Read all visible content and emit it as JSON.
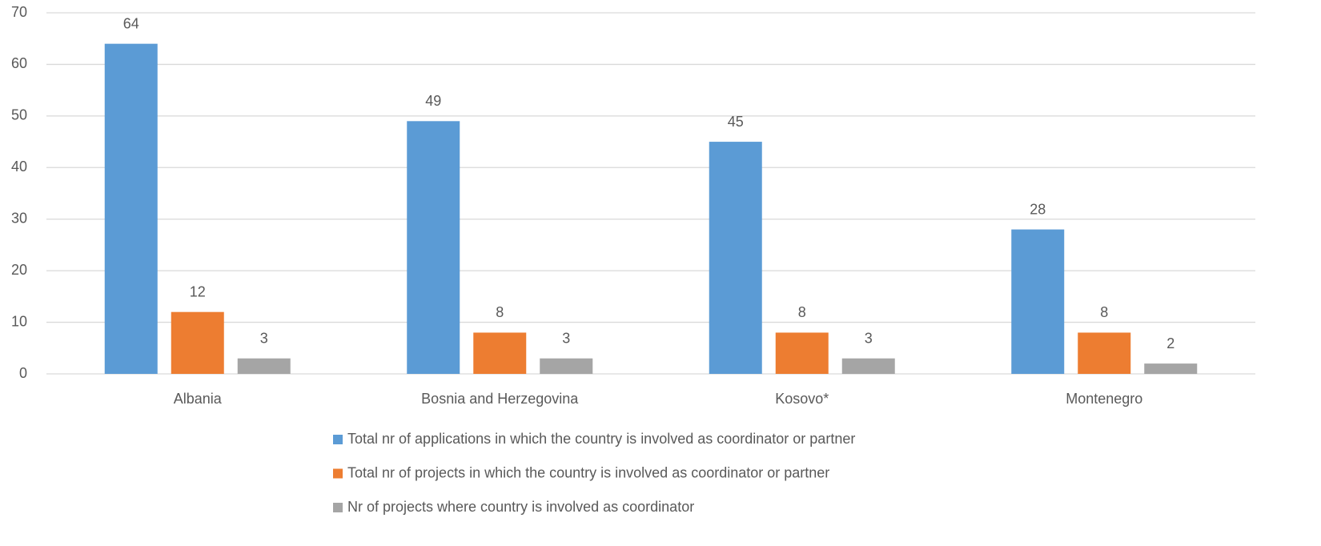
{
  "chart_data": {
    "type": "bar",
    "categories": [
      "Albania",
      "Bosnia and Herzegovina",
      "Kosovo*",
      "Montenegro"
    ],
    "series": [
      {
        "name": "Total nr of applications in which the country is involved as coordinator or partner",
        "color": "#5b9bd5",
        "values": [
          64,
          49,
          45,
          28
        ]
      },
      {
        "name": "Total nr of projects in which the country is involved as coordinator or partner",
        "color": "#ed7d31",
        "values": [
          12,
          8,
          8,
          8
        ]
      },
      {
        "name": "Nr of projects where country is involved as coordinator",
        "color": "#a5a5a5",
        "values": [
          3,
          3,
          3,
          2
        ]
      }
    ],
    "ylim": [
      0,
      70
    ],
    "yticks": [
      0,
      10,
      20,
      30,
      40,
      50,
      60,
      70
    ],
    "grid": true,
    "legend": "bottom"
  }
}
